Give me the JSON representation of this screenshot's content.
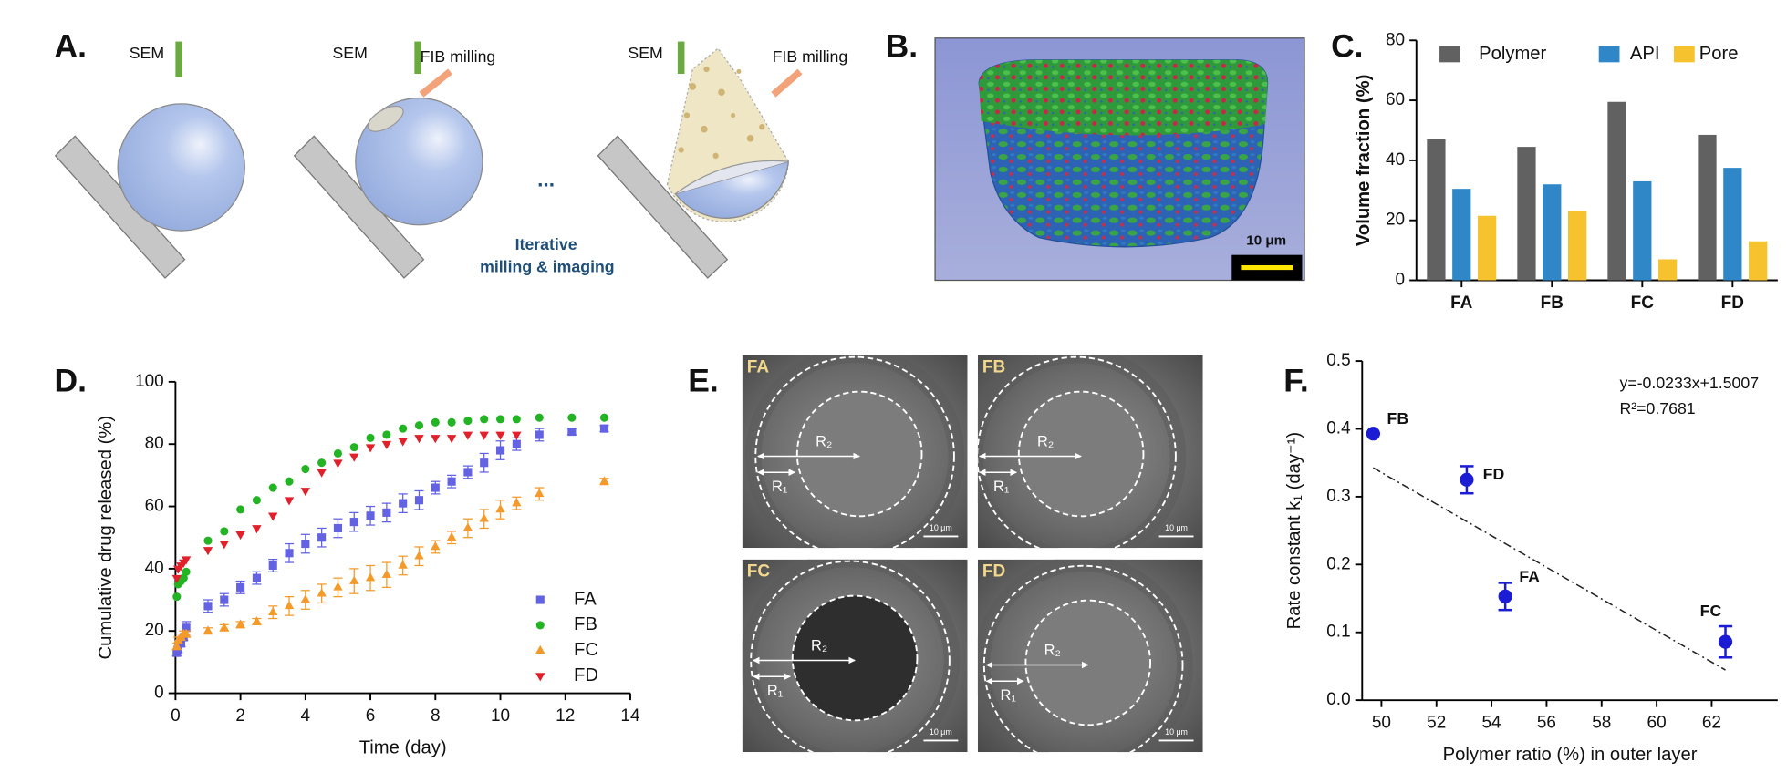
{
  "panel_a": {
    "label": "A.",
    "sem": [
      "SEM",
      "SEM",
      "SEM"
    ],
    "fib": [
      "FIB milling",
      "FIB milling"
    ],
    "ellipsis": "...",
    "caption": [
      "Iterative",
      "milling & imaging"
    ]
  },
  "panel_b": {
    "label": "B.",
    "scale_bar": "10 μm"
  },
  "panel_e": {
    "label": "E.",
    "images": [
      {
        "name": "FA",
        "r2": "R₂",
        "r1": "R₁",
        "scale_bar": "10 μm"
      },
      {
        "name": "FB",
        "r2": "R₂",
        "r1": "R₁",
        "scale_bar": "10 μm"
      },
      {
        "name": "FC",
        "r2": "R₂",
        "r1": "R₁",
        "scale_bar": "10 μm"
      },
      {
        "name": "FD",
        "r2": "R₂",
        "r1": "R₁",
        "scale_bar": "10 μm"
      }
    ]
  },
  "chart_data": [
    {
      "type": "bar",
      "panel": "C.",
      "ylabel": "Volume fraction (%)",
      "categories": [
        "FA",
        "FB",
        "FC",
        "FD"
      ],
      "series": [
        {
          "name": "Polymer",
          "color": "#616161",
          "values": [
            47,
            44.5,
            59.5,
            48.5
          ]
        },
        {
          "name": "API",
          "color": "#2f87c8",
          "values": [
            30.5,
            32,
            33,
            37.5
          ]
        },
        {
          "name": "Pore",
          "color": "#f6c22e",
          "values": [
            21.5,
            23,
            7,
            13
          ]
        }
      ],
      "ylim": [
        0,
        80
      ],
      "yticks": [
        0,
        20,
        40,
        60,
        80
      ],
      "legend": "top"
    },
    {
      "type": "scatter",
      "panel": "D.",
      "xlabel": "Time (day)",
      "ylabel": "Cumulative drug released (%)",
      "xlim": [
        0,
        14
      ],
      "ylim": [
        0,
        100
      ],
      "xticks": [
        0,
        2,
        4,
        6,
        8,
        10,
        12,
        14
      ],
      "yticks": [
        0,
        20,
        40,
        60,
        80,
        100
      ],
      "legend": "lower right",
      "series": [
        {
          "name": "FA",
          "color": "#6262e2",
          "marker": "square",
          "x": [
            0.04,
            0.08,
            0.17,
            0.25,
            0.33,
            1,
            1.5,
            2,
            2.5,
            3,
            3.5,
            4,
            4.5,
            5,
            5.5,
            6,
            6.5,
            7,
            7.5,
            8,
            8.5,
            9,
            9.5,
            10,
            10.5,
            11.2,
            12.2,
            13.2
          ],
          "values": [
            13,
            14,
            16,
            18,
            21,
            28,
            30,
            34,
            37,
            41,
            45,
            48,
            50,
            53,
            55,
            57,
            58,
            61,
            62,
            66,
            68,
            71,
            74,
            78,
            80,
            83,
            84,
            85
          ],
          "errors": [
            1,
            1,
            1,
            1,
            2,
            2,
            2,
            2,
            2,
            2,
            3,
            3,
            3,
            3,
            3,
            3,
            3,
            3,
            3,
            2,
            2,
            2,
            3,
            3,
            2,
            2,
            1,
            1
          ]
        },
        {
          "name": "FB",
          "color": "#22b422",
          "marker": "circle",
          "x": [
            0.04,
            0.08,
            0.17,
            0.25,
            0.33,
            1,
            1.5,
            2,
            2.5,
            3,
            3.5,
            4,
            4.5,
            5,
            5.5,
            6,
            6.5,
            7,
            7.5,
            8,
            8.5,
            9,
            9.5,
            10,
            10.5,
            11.2,
            12.2,
            13.2
          ],
          "values": [
            31,
            35,
            36,
            37,
            39,
            49,
            52,
            59,
            62,
            66,
            68,
            72,
            74,
            77,
            79,
            82,
            83,
            85,
            86,
            87,
            87,
            87.5,
            88,
            88,
            88,
            88.5,
            88.5,
            88.5
          ]
        },
        {
          "name": "FC",
          "color": "#f39a2b",
          "marker": "triangle-up",
          "x": [
            0.04,
            0.08,
            0.17,
            0.25,
            0.33,
            1,
            1.5,
            2,
            2.5,
            3,
            3.5,
            4,
            4.5,
            5,
            5.5,
            6,
            6.5,
            7,
            7.5,
            8,
            8.5,
            9,
            9.5,
            10,
            10.5,
            11.2,
            13.2
          ],
          "values": [
            15,
            17,
            18,
            19,
            19,
            20,
            21,
            22,
            23,
            26,
            28,
            30,
            32,
            34,
            36,
            37,
            38,
            41,
            44,
            47,
            50,
            53,
            56,
            59,
            61,
            64,
            68
          ],
          "errors": [
            1,
            1,
            1,
            1,
            1,
            1,
            1,
            1,
            1,
            2,
            3,
            3,
            3,
            3,
            4,
            4,
            4,
            3,
            3,
            2,
            2,
            3,
            3,
            3,
            2,
            2,
            1
          ]
        },
        {
          "name": "FD",
          "color": "#e0202a",
          "marker": "triangle-down",
          "x": [
            0.04,
            0.08,
            0.17,
            0.25,
            0.33,
            1,
            1.5,
            2,
            2.5,
            3,
            3.5,
            4,
            4.5,
            5,
            5.5,
            6,
            6.5,
            7,
            7.5,
            8,
            8.5,
            9,
            9.5,
            10,
            10.5
          ],
          "values": [
            37,
            40,
            41,
            42,
            43,
            46,
            48,
            51,
            53,
            57,
            62,
            65,
            71,
            74,
            76,
            79,
            80,
            81,
            82,
            82,
            82,
            83,
            83,
            83,
            83
          ]
        }
      ]
    },
    {
      "type": "scatter",
      "panel": "F.",
      "xlabel": "Polymer ratio (%) in outer layer",
      "ylabel": "Rate constant k₁ (day⁻¹)",
      "xlim": [
        49.3,
        64.4
      ],
      "ylim": [
        0,
        0.5
      ],
      "xticks": [
        50,
        52,
        54,
        56,
        58,
        60,
        62
      ],
      "yticks": [
        {
          "value": 0,
          "label": "0.0"
        },
        0.1,
        0.2,
        0.3,
        0.4,
        0.5
      ],
      "series": [
        {
          "color": "#1c1cd4",
          "marker": "circle",
          "x": [
            49.7,
            53.1,
            54.5,
            62.5
          ],
          "values": [
            0.393,
            0.325,
            0.153,
            0.086
          ],
          "errors": [
            0,
            0.02,
            0.02,
            0.023
          ],
          "point_labels": [
            "FB",
            "FD",
            "FA",
            "FC"
          ]
        }
      ],
      "fit": {
        "slope": -0.0233,
        "intercept": 1.5007,
        "style": "dash-dot"
      },
      "annotations": [
        "y=-0.0233x+1.5007",
        "R²=0.7681"
      ]
    }
  ]
}
